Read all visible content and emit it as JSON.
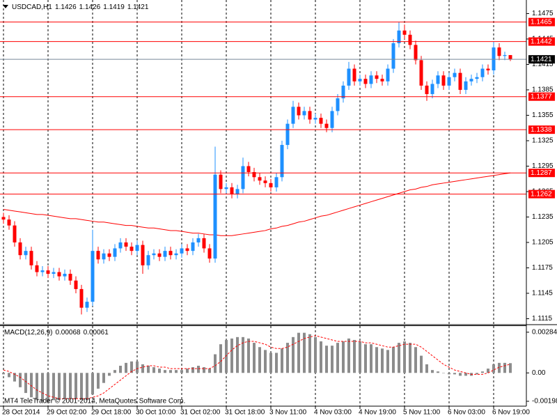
{
  "chart_data": {
    "type": "candlestick",
    "title": "USDCAD,H1",
    "categories": [
      "28 Oct 2014",
      null,
      null,
      null,
      null,
      null,
      null,
      null,
      "29 Oct 02:00",
      null,
      null,
      null,
      null,
      null,
      null,
      null,
      "29 Oct 18:00",
      null,
      null,
      null,
      null,
      null,
      null,
      null,
      "30 Oct 10:00",
      null,
      null,
      null,
      null,
      null,
      null,
      null,
      "31 Oct 02:00",
      null,
      null,
      null,
      null,
      null,
      null,
      null,
      "31 Oct 18:00",
      null,
      null,
      null,
      null,
      null,
      null,
      null,
      "3 Nov 11:00",
      null,
      null,
      null,
      null,
      null,
      null,
      null,
      "4 Nov 03:00",
      null,
      null,
      null,
      null,
      null,
      null,
      null,
      "4 Nov 19:00",
      null,
      null,
      null,
      null,
      null,
      null,
      null,
      "5 Nov 11:00",
      null,
      null,
      null,
      null,
      null,
      null,
      null,
      "6 Nov 03:00",
      null,
      null,
      null,
      null,
      null,
      null,
      null,
      "6 Nov 19:00",
      null,
      null,
      null
    ],
    "open": [
      1.1235,
      1.1232,
      1.1225,
      1.1205,
      1.119,
      1.1195,
      1.1178,
      1.117,
      1.1172,
      1.1168,
      1.117,
      1.1165,
      1.1168,
      1.116,
      1.115,
      1.1128,
      1.1135,
      1.1195,
      1.1185,
      1.1192,
      1.1188,
      1.1198,
      1.1205,
      1.12,
      1.1195,
      1.1202,
      1.1178,
      1.119,
      1.1192,
      1.1188,
      1.1195,
      1.119,
      1.1192,
      1.1198,
      1.1195,
      1.1205,
      1.121,
      1.1198,
      1.1186,
      1.1285,
      1.1268,
      1.127,
      1.1262,
      1.1268,
      1.1295,
      1.1288,
      1.1282,
      1.1278,
      1.1275,
      1.127,
      1.1282,
      1.132,
      1.1345,
      1.1365,
      1.1355,
      1.136,
      1.135,
      1.1352,
      1.1345,
      1.134,
      1.136,
      1.1375,
      1.139,
      1.141,
      1.1395,
      1.1398,
      1.1392,
      1.1402,
      1.1398,
      1.1395,
      1.141,
      1.144,
      1.1455,
      1.145,
      1.1438,
      1.142,
      1.139,
      1.138,
      1.1392,
      1.1402,
      1.139,
      1.14,
      1.1405,
      1.1385,
      1.1395,
      1.1398,
      1.14,
      1.141,
      1.1408,
      1.1435,
      1.1425,
      1.1426
    ],
    "high": [
      1.124,
      1.1237,
      1.123,
      1.121,
      1.12,
      1.12,
      1.1183,
      1.1177,
      1.1177,
      1.1175,
      1.1175,
      1.1173,
      1.1173,
      1.1165,
      1.1155,
      1.114,
      1.122,
      1.12,
      1.1197,
      1.1197,
      1.1203,
      1.121,
      1.121,
      1.1205,
      1.1207,
      1.1207,
      1.1195,
      1.1197,
      1.1197,
      1.12,
      1.12,
      1.1197,
      1.1203,
      1.1203,
      1.121,
      1.1215,
      1.1215,
      1.1203,
      1.1318,
      1.129,
      1.1275,
      1.1275,
      1.1273,
      1.1305,
      1.13,
      1.1293,
      1.1287,
      1.1283,
      1.128,
      1.1287,
      1.1325,
      1.135,
      1.1372,
      1.137,
      1.1365,
      1.1365,
      1.1357,
      1.1357,
      1.135,
      1.1365,
      1.138,
      1.1395,
      1.1418,
      1.1415,
      1.1403,
      1.1403,
      1.1407,
      1.1407,
      1.1403,
      1.1415,
      1.1445,
      1.1465,
      1.1462,
      1.1455,
      1.1443,
      1.1425,
      1.1395,
      1.1397,
      1.1407,
      1.1407,
      1.1405,
      1.141,
      1.141,
      1.14,
      1.1403,
      1.1405,
      1.1415,
      1.1415,
      1.1442,
      1.144,
      1.143,
      1.1426
    ],
    "low": [
      1.1227,
      1.122,
      1.12,
      1.1185,
      1.1185,
      1.1173,
      1.1165,
      1.1165,
      1.1163,
      1.1163,
      1.116,
      1.116,
      1.1155,
      1.1145,
      1.112,
      1.1123,
      1.113,
      1.118,
      1.118,
      1.1183,
      1.1183,
      1.1193,
      1.1195,
      1.119,
      1.119,
      1.1168,
      1.1173,
      1.1185,
      1.1183,
      1.1183,
      1.1185,
      1.1185,
      1.1187,
      1.119,
      1.119,
      1.12,
      1.1193,
      1.1181,
      1.1181,
      1.1263,
      1.1263,
      1.1257,
      1.1257,
      1.1263,
      1.1283,
      1.1277,
      1.1273,
      1.127,
      1.1265,
      1.1265,
      1.1277,
      1.1315,
      1.134,
      1.135,
      1.135,
      1.1345,
      1.1345,
      1.134,
      1.1335,
      1.1335,
      1.1355,
      1.137,
      1.1385,
      1.139,
      1.139,
      1.1387,
      1.1387,
      1.1393,
      1.139,
      1.139,
      1.1405,
      1.1435,
      1.1445,
      1.1433,
      1.1415,
      1.1385,
      1.1372,
      1.1375,
      1.1387,
      1.1385,
      1.1385,
      1.1395,
      1.138,
      1.138,
      1.139,
      1.1393,
      1.1395,
      1.1403,
      1.1403,
      1.142,
      1.142,
      1.1419
    ],
    "close": [
      1.1232,
      1.1225,
      1.1205,
      1.119,
      1.1195,
      1.1178,
      1.117,
      1.1172,
      1.1168,
      1.117,
      1.1165,
      1.1168,
      1.116,
      1.115,
      1.1128,
      1.1135,
      1.1195,
      1.1185,
      1.1192,
      1.1188,
      1.1198,
      1.1205,
      1.12,
      1.1195,
      1.1202,
      1.1178,
      1.119,
      1.1192,
      1.1188,
      1.1195,
      1.119,
      1.1192,
      1.1198,
      1.1195,
      1.1205,
      1.121,
      1.1198,
      1.1186,
      1.1285,
      1.1268,
      1.127,
      1.1262,
      1.1268,
      1.1295,
      1.1288,
      1.1282,
      1.1278,
      1.1275,
      1.127,
      1.1282,
      1.132,
      1.1345,
      1.1365,
      1.1355,
      1.136,
      1.135,
      1.1352,
      1.1345,
      1.134,
      1.136,
      1.1375,
      1.139,
      1.141,
      1.1395,
      1.1398,
      1.1392,
      1.1402,
      1.1398,
      1.1395,
      1.141,
      1.144,
      1.1455,
      1.145,
      1.1438,
      1.142,
      1.139,
      1.138,
      1.1392,
      1.1402,
      1.139,
      1.14,
      1.1405,
      1.1385,
      1.1395,
      1.1398,
      1.14,
      1.141,
      1.1408,
      1.1435,
      1.1425,
      1.1426,
      1.1421
    ],
    "up_color": "#1e90ff",
    "down_color": "#ff0000",
    "ylim": [
      1.1108,
      1.1491
    ],
    "yticks": [
      1.1475,
      1.1445,
      1.1415,
      1.1385,
      1.1355,
      1.1325,
      1.1295,
      1.1265,
      1.1235,
      1.1205,
      1.1175,
      1.1145,
      1.1115
    ],
    "grid": true,
    "moving_average": {
      "color": "#ff0000",
      "values": [
        1.1244,
        1.1243,
        1.1242,
        1.1241,
        1.124,
        1.1239,
        1.1238,
        1.1238,
        1.1237,
        1.1236,
        1.1235,
        1.1234,
        1.1233,
        1.1233,
        1.1232,
        1.1231,
        1.123,
        1.1229,
        1.1229,
        1.1228,
        1.1227,
        1.1226,
        1.1225,
        1.1225,
        1.1224,
        1.1223,
        1.1222,
        1.1222,
        1.1221,
        1.122,
        1.1219,
        1.1219,
        1.1218,
        1.1217,
        1.1216,
        1.1216,
        1.1215,
        1.1214,
        1.1214,
        1.1213,
        1.1213,
        1.1213,
        1.1214,
        1.1215,
        1.1216,
        1.1217,
        1.1218,
        1.1219,
        1.1221,
        1.1222,
        1.1224,
        1.1225,
        1.1227,
        1.1229,
        1.123,
        1.1232,
        1.1234,
        1.1236,
        1.1237,
        1.1239,
        1.1241,
        1.1243,
        1.1245,
        1.1247,
        1.1249,
        1.1251,
        1.1253,
        1.1255,
        1.1257,
        1.1259,
        1.1261,
        1.1263,
        1.1265,
        1.1267,
        1.1268,
        1.127,
        1.1271,
        1.1273,
        1.1274,
        1.1275,
        1.1276,
        1.1277,
        1.1278,
        1.1279,
        1.128,
        1.1281,
        1.1282,
        1.1283,
        1.1284,
        1.1285,
        1.1286,
        1.1287
      ]
    },
    "levels": {
      "color": "#ff0000",
      "values": [
        1.1465,
        1.1442,
        1.1377,
        1.1338,
        1.1287,
        1.1262
      ]
    },
    "price_line_color": "#778899",
    "macd": {
      "title": "MACD(12,26,9)",
      "histogram": {
        "color": "#8c8c8c",
        "values": [
          -0.0001,
          -0.0003,
          -0.0006,
          -0.001,
          -0.0014,
          -0.0017,
          -0.0019,
          -0.002,
          -0.002,
          -0.0019,
          -0.0019,
          -0.0018,
          -0.0018,
          -0.0018,
          -0.0019,
          -0.0019,
          -0.0015,
          -0.0011,
          -0.0007,
          -0.0002,
          0.0002,
          0.0005,
          0.0007,
          0.0008,
          0.0008,
          0.0006,
          0.0005,
          0.0004,
          0.0003,
          0.0002,
          0.0002,
          0.0002,
          0.0002,
          0.0003,
          0.0004,
          0.0005,
          0.0004,
          0.0003,
          0.0013,
          0.002,
          0.0023,
          0.0024,
          0.0025,
          0.0025,
          0.0024,
          0.0021,
          0.0018,
          0.0016,
          0.0014,
          0.0014,
          0.0017,
          0.0021,
          0.0025,
          0.0028,
          0.0028,
          0.0027,
          0.0025,
          0.0022,
          0.0019,
          0.0019,
          0.0021,
          0.0022,
          0.0024,
          0.0023,
          0.0022,
          0.002,
          0.002,
          0.0018,
          0.0017,
          0.0016,
          0.0018,
          0.0021,
          0.0022,
          0.0021,
          0.0018,
          0.0012,
          0.0006,
          0.0002,
          0.0001,
          0.0,
          -0.0001,
          -0.0001,
          -0.0002,
          -0.0002,
          -0.0002,
          -0.0001,
          0.0001,
          0.0003,
          0.0006,
          0.0007,
          0.0007,
          0.00068
        ]
      },
      "signal": {
        "color": "#ff0000",
        "values": [
          0.0002,
          0.0001,
          -0.0001,
          -0.0003,
          -0.0006,
          -0.0009,
          -0.0012,
          -0.0014,
          -0.0016,
          -0.0017,
          -0.0018,
          -0.0018,
          -0.0018,
          -0.0018,
          -0.0018,
          -0.0018,
          -0.0017,
          -0.0016,
          -0.0014,
          -0.0011,
          -0.0008,
          -0.0005,
          -0.0002,
          0.0001,
          0.0003,
          0.0004,
          0.0005,
          0.0005,
          0.0004,
          0.0004,
          0.0003,
          0.0003,
          0.0003,
          0.0003,
          0.0003,
          0.0003,
          0.0003,
          0.0003,
          0.0005,
          0.0008,
          0.0012,
          0.0016,
          0.0019,
          0.0021,
          0.0022,
          0.0022,
          0.0021,
          0.002,
          0.0018,
          0.0017,
          0.0017,
          0.0018,
          0.002,
          0.0022,
          0.0024,
          0.0025,
          0.0026,
          0.0025,
          0.0024,
          0.0023,
          0.0022,
          0.0022,
          0.0022,
          0.0022,
          0.0022,
          0.0021,
          0.0021,
          0.002,
          0.0019,
          0.0018,
          0.0018,
          0.0019,
          0.002,
          0.002,
          0.002,
          0.0018,
          0.0015,
          0.0012,
          0.0009,
          0.0006,
          0.0004,
          0.0002,
          0.0001,
          0.0,
          -0.0001,
          -0.0001,
          -0.0001,
          0.0,
          0.0002,
          0.0004,
          0.0005,
          0.00061
        ]
      },
      "y2lim": [
        -0.00232,
        0.00327
      ],
      "y2ticks": [
        0.00284,
        {
          "value": 0,
          "label": "0.00"
        },
        -0.00198
      ]
    },
    "watermark": "MT4 TeleTrader © 2001-2014, MetaQuotes Software Corp."
  }
}
